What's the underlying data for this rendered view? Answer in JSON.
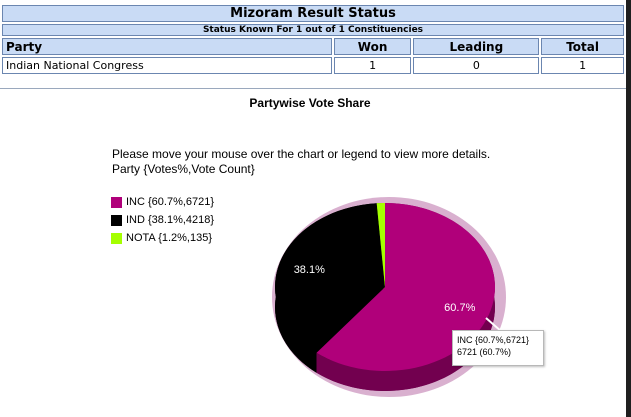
{
  "table": {
    "title": "Mizoram Result Status",
    "subtitle": "Status Known For 1 out of 1 Constituencies",
    "headers": {
      "party": "Party",
      "won": "Won",
      "leading": "Leading",
      "total": "Total"
    },
    "rows": [
      {
        "party": "Indian National Congress",
        "won": "1",
        "leading": "0",
        "total": "1"
      }
    ]
  },
  "chart_title": "Partywise Vote Share",
  "hint_line1": "Please move your mouse over the chart or legend to view more details.",
  "hint_line2": "Party {Votes%,Vote Count}",
  "chart_data": {
    "type": "pie",
    "title": "Partywise Vote Share",
    "slices": [
      {
        "label": "INC {60.7%,6721}",
        "party": "INC",
        "percent": 60.7,
        "votes": 6721,
        "color": "#b0007a",
        "data_label": "60.7%"
      },
      {
        "label": "IND {38.1%,4218}",
        "party": "IND",
        "percent": 38.1,
        "votes": 4218,
        "color": "#000000",
        "data_label": "38.1%"
      },
      {
        "label": "NOTA {1.2%,135}",
        "party": "NOTA",
        "percent": 1.2,
        "votes": 135,
        "color": "#a5ff00",
        "data_label": ""
      }
    ],
    "legend_position": "left"
  },
  "tooltip": {
    "line1": "INC {60.7%,6721}",
    "line2": "6721 (60.7%)"
  }
}
